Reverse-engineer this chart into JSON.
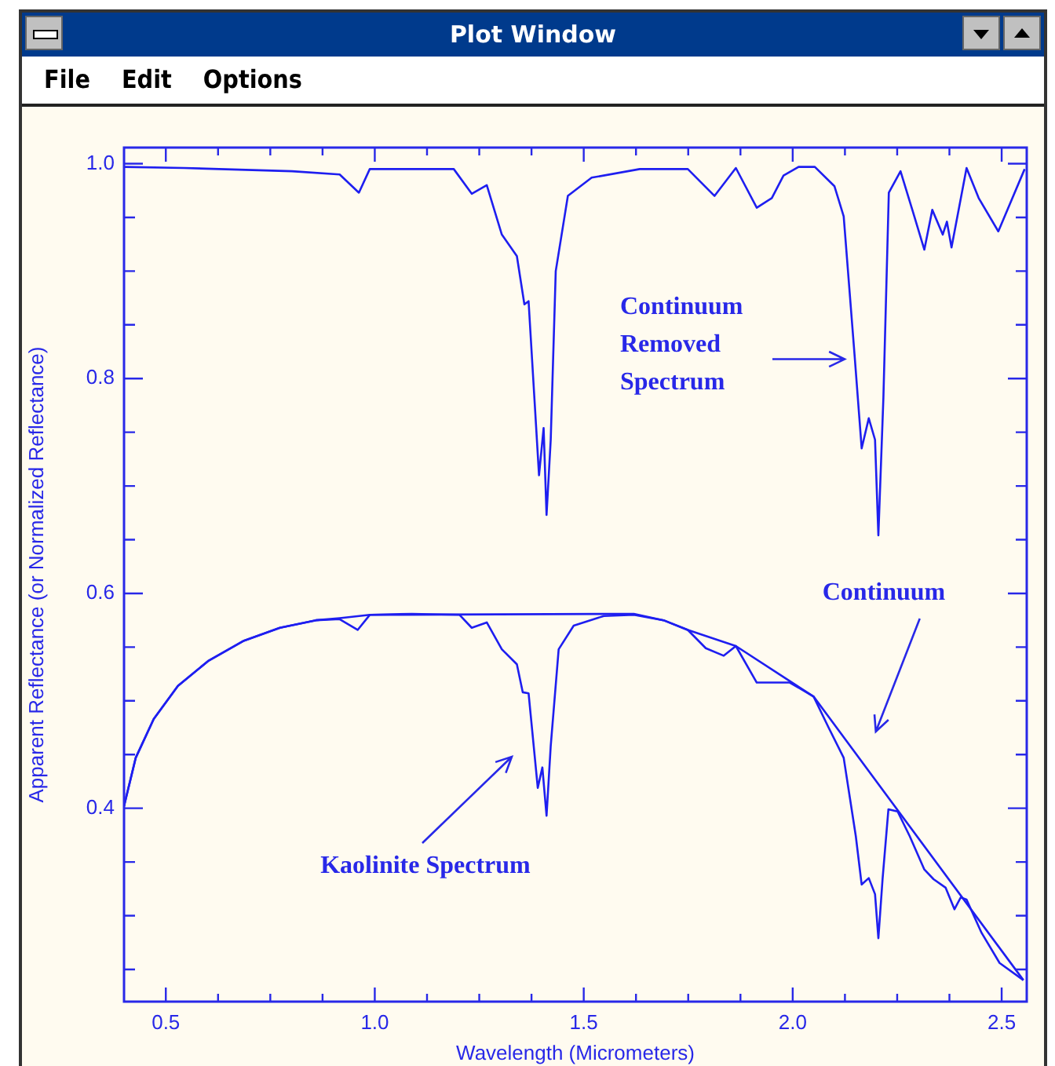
{
  "chart_data": {
    "type": "line",
    "title": "Plot Window",
    "xlabel": "Wavelength (Micrometers)",
    "ylabel": "Apparent Reflectance (or Normalized Reflectance)",
    "xlim": [
      0.4,
      2.56
    ],
    "ylim": [
      0.22,
      1.015
    ],
    "xticks": [
      {
        "value": 0.5,
        "label": "0.5"
      },
      {
        "value": 0.625,
        "label": null
      },
      {
        "value": 0.75,
        "label": null
      },
      {
        "value": 0.875,
        "label": null
      },
      {
        "value": 1.0,
        "label": "1.0"
      },
      {
        "value": 1.125,
        "label": null
      },
      {
        "value": 1.25,
        "label": null
      },
      {
        "value": 1.375,
        "label": null
      },
      {
        "value": 1.5,
        "label": "1.5"
      },
      {
        "value": 1.625,
        "label": null
      },
      {
        "value": 1.75,
        "label": null
      },
      {
        "value": 1.875,
        "label": null
      },
      {
        "value": 2.0,
        "label": "2.0"
      },
      {
        "value": 2.125,
        "label": null
      },
      {
        "value": 2.25,
        "label": null
      },
      {
        "value": 2.375,
        "label": null
      },
      {
        "value": 2.5,
        "label": "2.5"
      }
    ],
    "yticks": [
      {
        "value": 0.25,
        "label": null
      },
      {
        "value": 0.3,
        "label": null
      },
      {
        "value": 0.35,
        "label": null
      },
      {
        "value": 0.4,
        "label": "0.4"
      },
      {
        "value": 0.45,
        "label": null
      },
      {
        "value": 0.5,
        "label": null
      },
      {
        "value": 0.55,
        "label": null
      },
      {
        "value": 0.6,
        "label": "0.6"
      },
      {
        "value": 0.65,
        "label": null
      },
      {
        "value": 0.7,
        "label": null
      },
      {
        "value": 0.75,
        "label": null
      },
      {
        "value": 0.8,
        "label": "0.8"
      },
      {
        "value": 0.85,
        "label": null
      },
      {
        "value": 0.9,
        "label": null
      },
      {
        "value": 0.95,
        "label": null
      },
      {
        "value": 1.0,
        "label": "1.0"
      }
    ],
    "grid": false,
    "legend": false,
    "marker": "none",
    "line_style": "solid",
    "series": [
      {
        "color": "#1e1ef0",
        "x": [
          0.4,
          0.543,
          0.802,
          0.916,
          0.962,
          0.988,
          1.189,
          1.232,
          1.268,
          1.304,
          1.34,
          1.358,
          1.368,
          1.393,
          1.404,
          1.411,
          1.421,
          1.433,
          1.462,
          1.519,
          1.634,
          1.749,
          1.813,
          1.864,
          1.914,
          1.95,
          1.978,
          2.014,
          2.053,
          2.1,
          2.122,
          2.148,
          2.165,
          2.182,
          2.197,
          2.205,
          2.217,
          2.23,
          2.258,
          2.287,
          2.315,
          2.334,
          2.359,
          2.369,
          2.38,
          2.416,
          2.445,
          2.492,
          2.555
        ],
        "values": [
          0.997,
          0.996,
          0.993,
          0.99,
          0.973,
          0.995,
          0.995,
          0.972,
          0.98,
          0.934,
          0.914,
          0.869,
          0.872,
          0.71,
          0.754,
          0.673,
          0.743,
          0.9,
          0.97,
          0.987,
          0.995,
          0.995,
          0.97,
          0.996,
          0.959,
          0.968,
          0.989,
          0.997,
          0.997,
          0.979,
          0.951,
          0.822,
          0.735,
          0.763,
          0.743,
          0.654,
          0.782,
          0.973,
          0.993,
          0.956,
          0.92,
          0.957,
          0.934,
          0.946,
          0.922,
          0.996,
          0.968,
          0.937,
          0.995
        ]
      },
      {
        "color": "#1e1ef0",
        "x": [
          0.4,
          0.428,
          0.471,
          0.529,
          0.601,
          0.687,
          0.773,
          0.859,
          0.916,
          0.959,
          0.988,
          1.089,
          1.203,
          1.232,
          1.268,
          1.304,
          1.34,
          1.354,
          1.368,
          1.39,
          1.401,
          1.411,
          1.421,
          1.44,
          1.476,
          1.548,
          1.62,
          1.691,
          1.749,
          1.792,
          1.835,
          1.864,
          1.914,
          1.993,
          2.05,
          2.086,
          2.122,
          2.151,
          2.165,
          2.182,
          2.197,
          2.205,
          2.215,
          2.229,
          2.251,
          2.28,
          2.315,
          2.337,
          2.366,
          2.387,
          2.402,
          2.416,
          2.452,
          2.495,
          2.552
        ],
        "values": [
          0.402,
          0.447,
          0.483,
          0.514,
          0.537,
          0.556,
          0.568,
          0.575,
          0.576,
          0.566,
          0.58,
          0.581,
          0.58,
          0.568,
          0.573,
          0.548,
          0.534,
          0.508,
          0.507,
          0.419,
          0.438,
          0.393,
          0.458,
          0.548,
          0.57,
          0.579,
          0.58,
          0.575,
          0.566,
          0.549,
          0.542,
          0.551,
          0.517,
          0.517,
          0.504,
          0.475,
          0.447,
          0.374,
          0.329,
          0.335,
          0.32,
          0.279,
          0.334,
          0.399,
          0.397,
          0.374,
          0.343,
          0.334,
          0.326,
          0.306,
          0.317,
          0.315,
          0.284,
          0.256,
          0.24
        ]
      },
      {
        "color": "#1e1ef0",
        "x": [
          0.4,
          0.428,
          0.471,
          0.529,
          0.601,
          0.687,
          0.773,
          0.859,
          0.916,
          0.988,
          1.62,
          1.691,
          1.749,
          1.864,
          2.05,
          2.552
        ],
        "values": [
          0.402,
          0.447,
          0.483,
          0.514,
          0.537,
          0.556,
          0.568,
          0.575,
          0.577,
          0.58,
          0.581,
          0.575,
          0.566,
          0.551,
          0.504,
          0.24
        ]
      }
    ],
    "annotations": [
      "File",
      "Edit",
      "Options",
      "Continuum\nRemoved\nSpectrum",
      "Continuum",
      "Kaolinite Spectrum"
    ]
  }
}
